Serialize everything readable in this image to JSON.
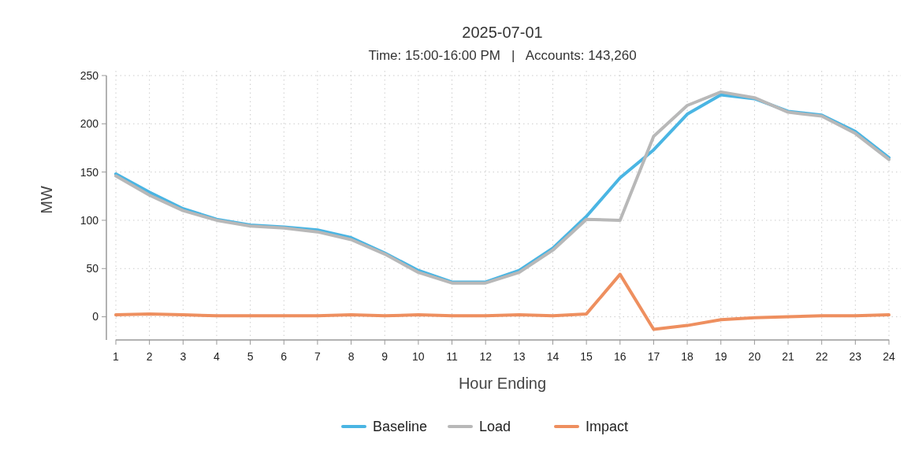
{
  "chart_data": {
    "type": "line",
    "title": "2025-07-01",
    "subtitle": "Time: 15:00-16:00 PM   |   Accounts: 143,260",
    "xlabel": "Hour Ending",
    "ylabel": "MW",
    "x": [
      1,
      2,
      3,
      4,
      5,
      6,
      7,
      8,
      9,
      10,
      11,
      12,
      13,
      14,
      15,
      16,
      17,
      18,
      19,
      20,
      21,
      22,
      23,
      24
    ],
    "xlim": [
      1,
      24
    ],
    "xticks": [
      1,
      2,
      3,
      4,
      5,
      6,
      7,
      8,
      9,
      10,
      11,
      12,
      13,
      14,
      15,
      16,
      17,
      18,
      19,
      20,
      21,
      22,
      23,
      24
    ],
    "ylim": [
      -24,
      250
    ],
    "yticks": [
      0,
      50,
      100,
      150,
      200,
      250
    ],
    "grid": true,
    "legend": "bottom",
    "line_style": "solid",
    "marker": "none",
    "series": [
      {
        "name": "Baseline",
        "color": "#4ab5e3",
        "values": [
          148,
          129,
          112,
          101,
          95,
          93,
          90,
          82,
          66,
          48,
          36,
          36,
          48,
          71,
          104,
          144,
          173,
          210,
          230,
          226,
          213,
          209,
          192,
          165
        ]
      },
      {
        "name": "Load",
        "color": "#b8b8b8",
        "values": [
          146,
          126,
          110,
          100,
          94,
          92,
          88,
          80,
          65,
          46,
          35,
          35,
          46,
          69,
          101,
          100,
          187,
          219,
          233,
          227,
          212,
          208,
          190,
          163
        ]
      },
      {
        "name": "Impact",
        "color": "#ee8f5f",
        "values": [
          2,
          3,
          2,
          1,
          1,
          1,
          1,
          2,
          1,
          2,
          1,
          1,
          2,
          1,
          3,
          44,
          -13,
          -9,
          -3,
          -1,
          0,
          1,
          1,
          2
        ]
      }
    ]
  }
}
